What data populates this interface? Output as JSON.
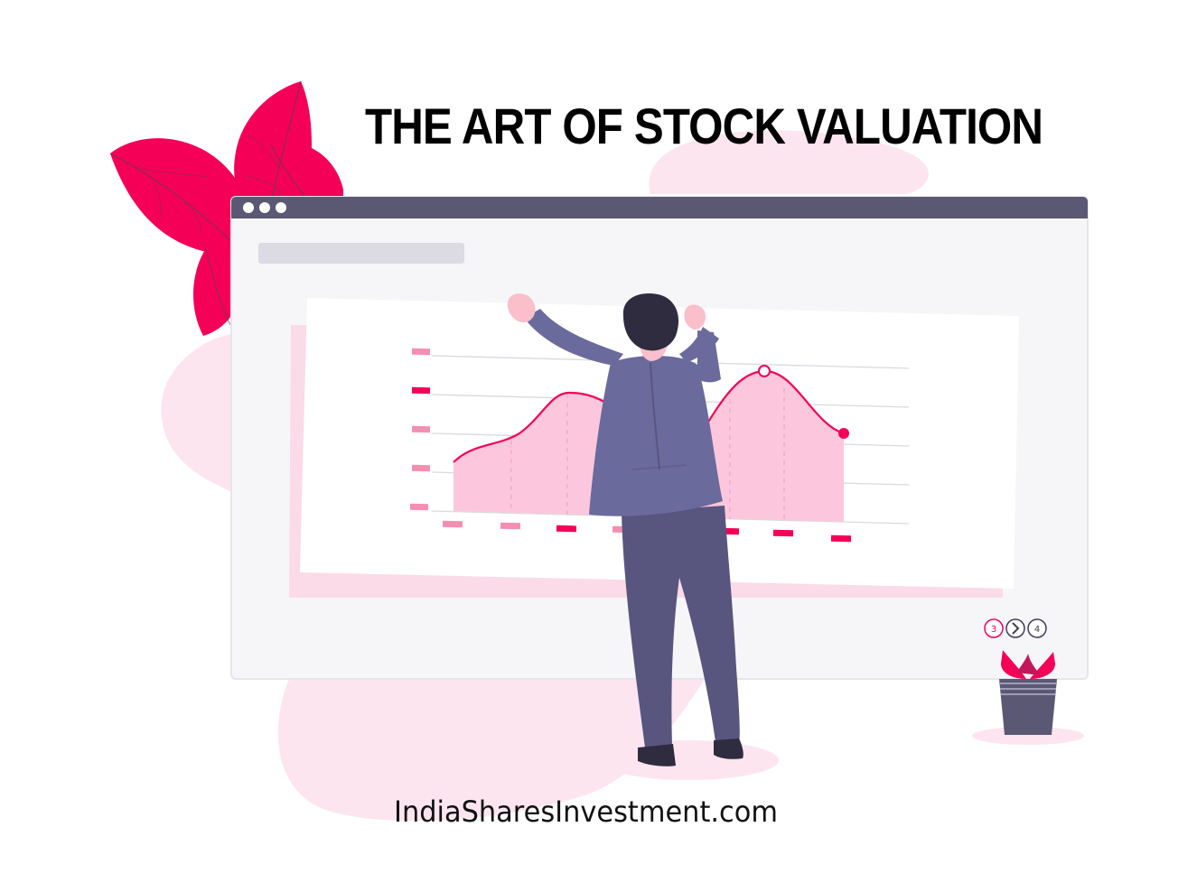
{
  "header": {
    "title": "THE ART OF STOCK VALUATION"
  },
  "footer": {
    "website": "IndiaSharesInvestment.com"
  },
  "pager": {
    "previous_page": "3",
    "next_page": "4"
  },
  "colors": {
    "accent": "#f50057",
    "accent_soft": "#fdd3e3",
    "blob": "#fde5ef",
    "browser_bar": "#5b5874",
    "suit": "#6b6a9c",
    "suit_dark": "#58567f"
  }
}
